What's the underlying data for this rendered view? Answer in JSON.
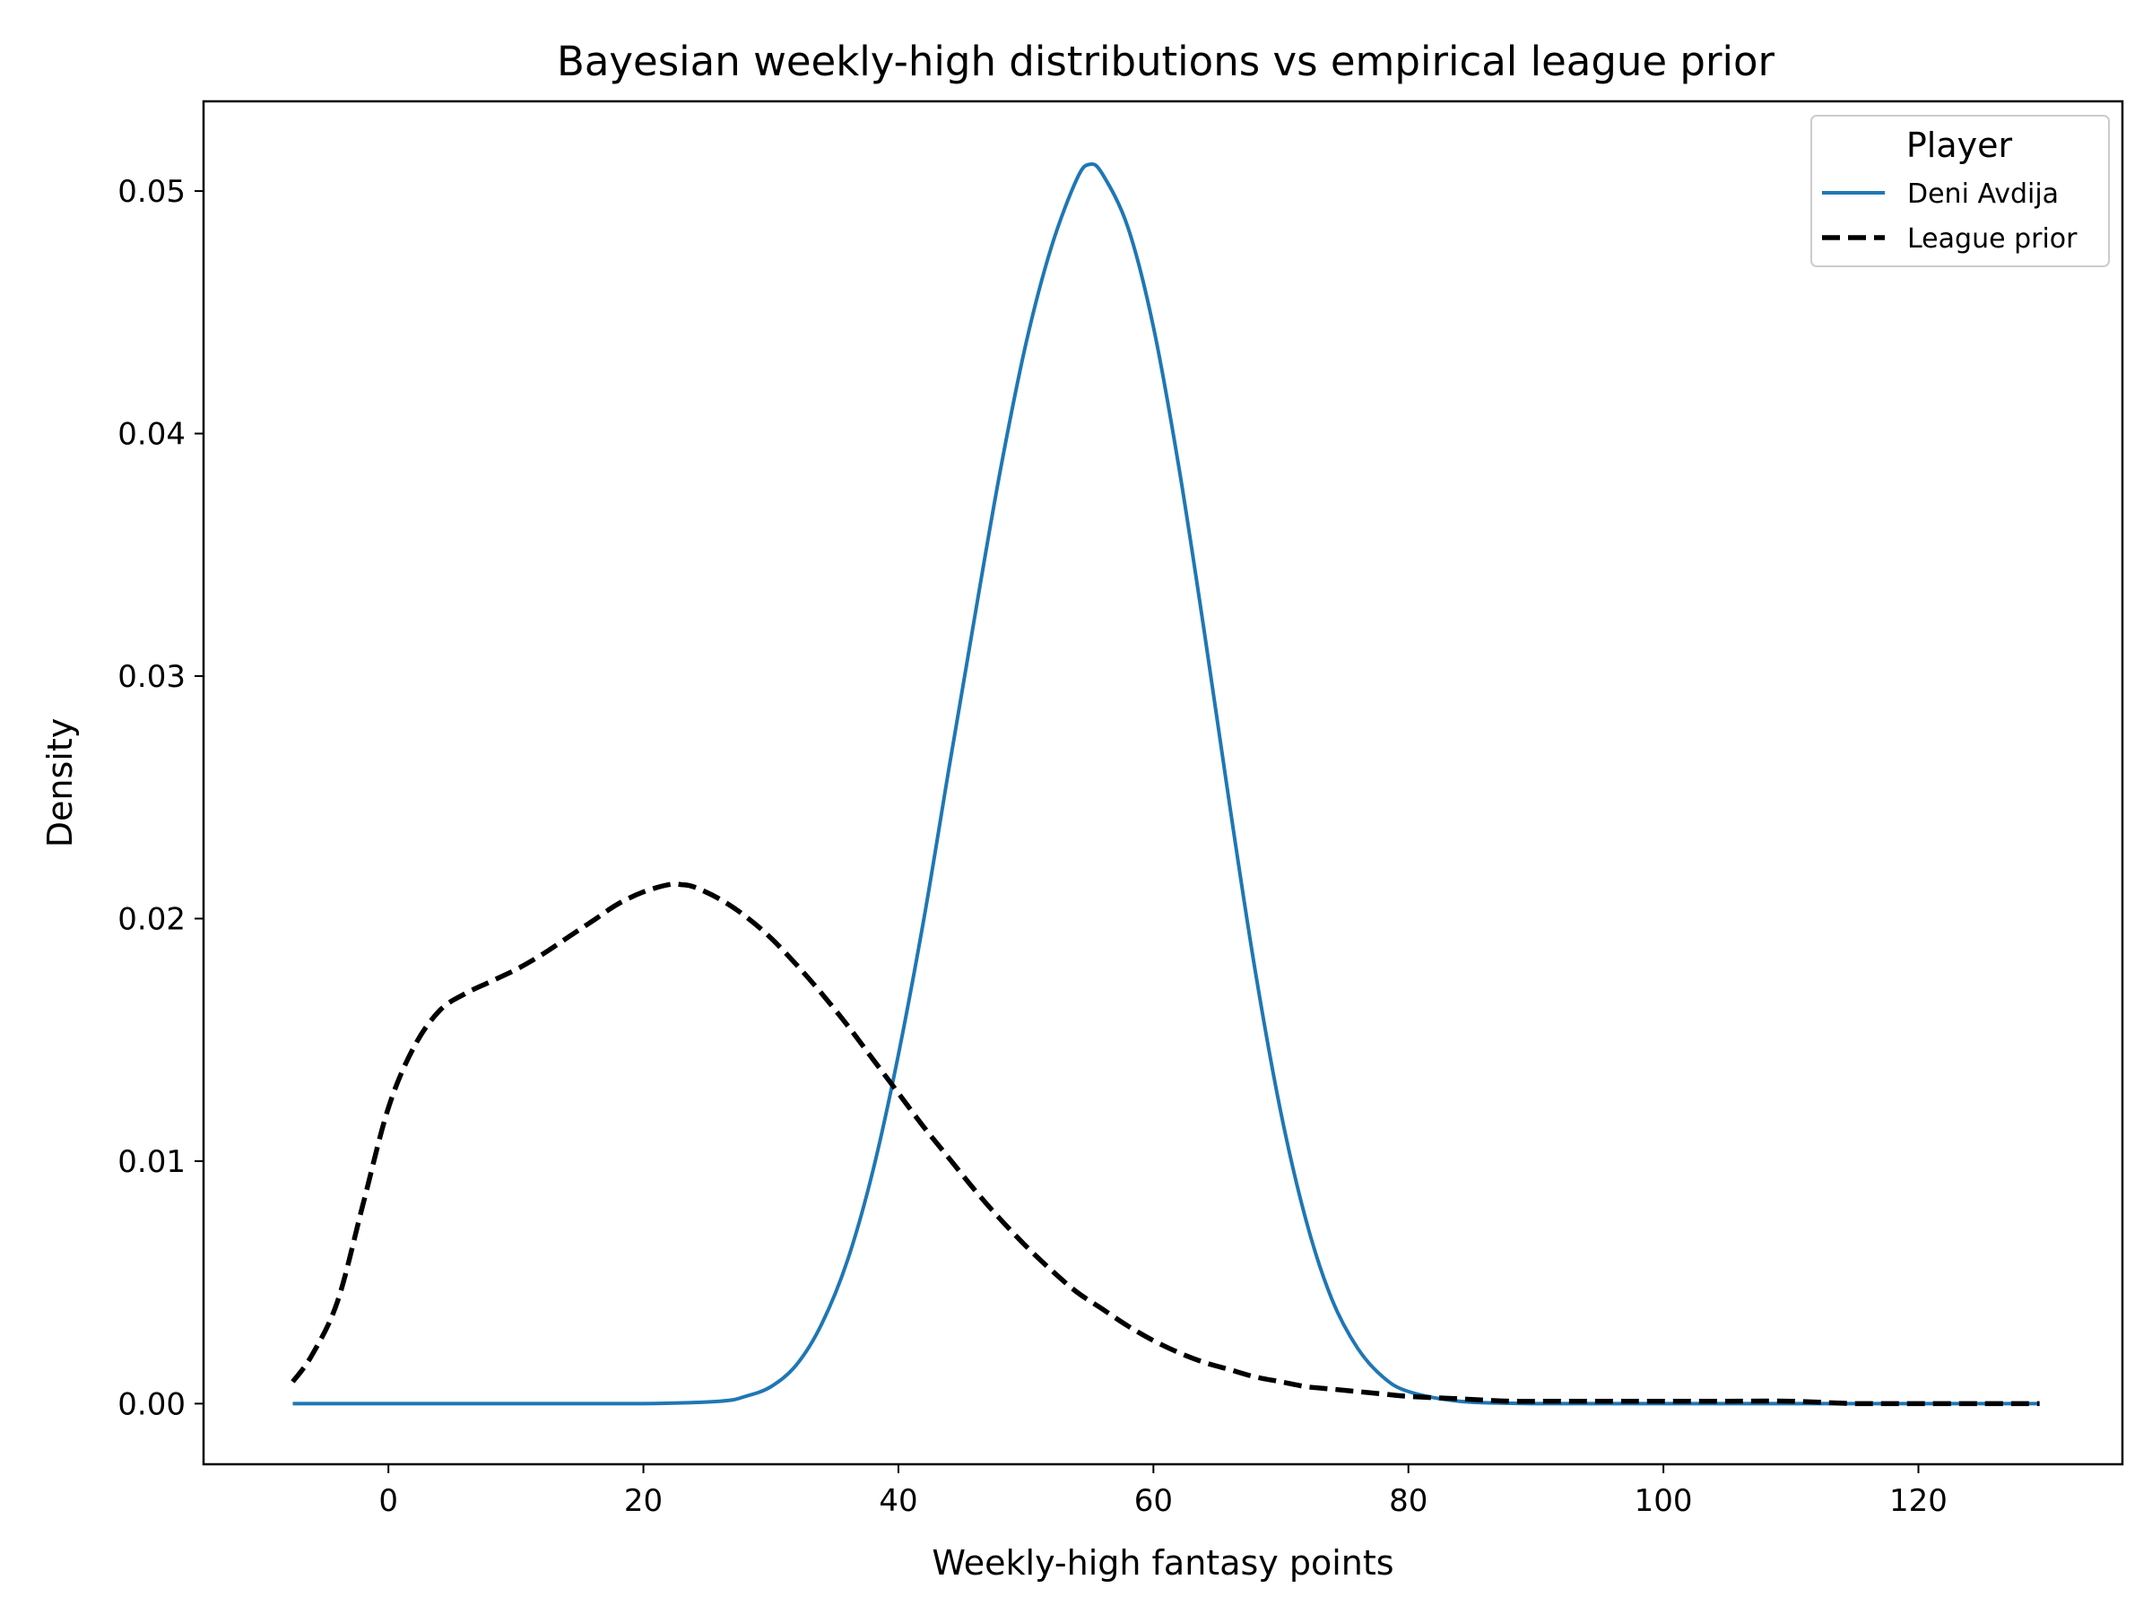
{
  "chart_data": {
    "type": "line",
    "title": "Bayesian weekly-high distributions vs empirical league prior",
    "xlabel": "Weekly-high fantasy points",
    "ylabel": "Density",
    "xlim": [
      -14.5,
      136
    ],
    "ylim": [
      -0.0025,
      0.0537
    ],
    "x_ticks": [
      0,
      20,
      40,
      60,
      80,
      100,
      120
    ],
    "y_ticks": [
      0.0,
      0.01,
      0.02,
      0.03,
      0.04,
      0.05
    ],
    "x_tick_labels": [
      "0",
      "20",
      "40",
      "60",
      "80",
      "100",
      "120"
    ],
    "y_tick_labels": [
      "0.00",
      "0.01",
      "0.02",
      "0.03",
      "0.04",
      "0.05"
    ],
    "grid": false,
    "legend": {
      "title": "Player",
      "position": "top-right",
      "entries": [
        "Deni Avdija",
        "League prior"
      ]
    },
    "series": [
      {
        "name": "Deni Avdija",
        "style": "solid",
        "color": "#1f77b4",
        "x": [
          -7.5,
          0,
          10,
          20,
          26,
          28,
          30,
          32,
          34,
          36,
          38,
          40,
          42,
          44,
          46,
          48,
          50,
          52,
          54,
          55,
          56,
          58,
          60,
          62,
          64,
          66,
          68,
          70,
          72,
          74,
          76,
          78,
          80,
          84,
          90,
          100,
          110,
          120,
          129.5
        ],
        "values": [
          0,
          0,
          0,
          0,
          0.0001,
          0.0003,
          0.0007,
          0.0016,
          0.0033,
          0.0059,
          0.0096,
          0.0144,
          0.02,
          0.0263,
          0.0325,
          0.0385,
          0.0437,
          0.0477,
          0.0505,
          0.0511,
          0.0507,
          0.0485,
          0.0444,
          0.0386,
          0.0318,
          0.0246,
          0.0178,
          0.012,
          0.0075,
          0.0043,
          0.0023,
          0.0011,
          0.0005,
          0.0001,
          0,
          0,
          0,
          0,
          0
        ]
      },
      {
        "name": "League prior",
        "style": "dashed",
        "color": "#000000",
        "x": [
          -7.5,
          -6,
          -4,
          -2,
          0,
          2,
          4,
          6,
          8,
          10,
          12,
          14,
          16,
          18,
          20,
          22,
          23,
          24,
          26,
          28,
          30,
          32,
          34,
          36,
          38,
          40,
          42,
          44,
          46,
          48,
          50,
          52,
          54,
          56,
          58,
          60,
          62,
          64,
          66,
          68,
          70,
          72,
          74,
          76,
          78,
          80,
          84,
          88,
          92,
          96,
          100,
          105,
          110,
          115,
          120,
          125,
          129.5
        ],
        "values": [
          0.0009,
          0.002,
          0.0042,
          0.0082,
          0.0122,
          0.0147,
          0.0162,
          0.0169,
          0.0174,
          0.0179,
          0.0185,
          0.0192,
          0.0199,
          0.0206,
          0.0211,
          0.0214,
          0.0214,
          0.0213,
          0.0208,
          0.0201,
          0.0192,
          0.0181,
          0.0169,
          0.0156,
          0.0142,
          0.0128,
          0.0114,
          0.0101,
          0.0088,
          0.0076,
          0.0065,
          0.0055,
          0.0046,
          0.0039,
          0.0032,
          0.0026,
          0.0021,
          0.0017,
          0.0014,
          0.0011,
          0.0009,
          0.0007,
          0.0006,
          0.0005,
          0.0004,
          0.0003,
          0.0002,
          0.0001,
          0.0001,
          0.0001,
          0.0001,
          0.0001,
          0.0001,
          0,
          0,
          0,
          0
        ]
      }
    ]
  }
}
